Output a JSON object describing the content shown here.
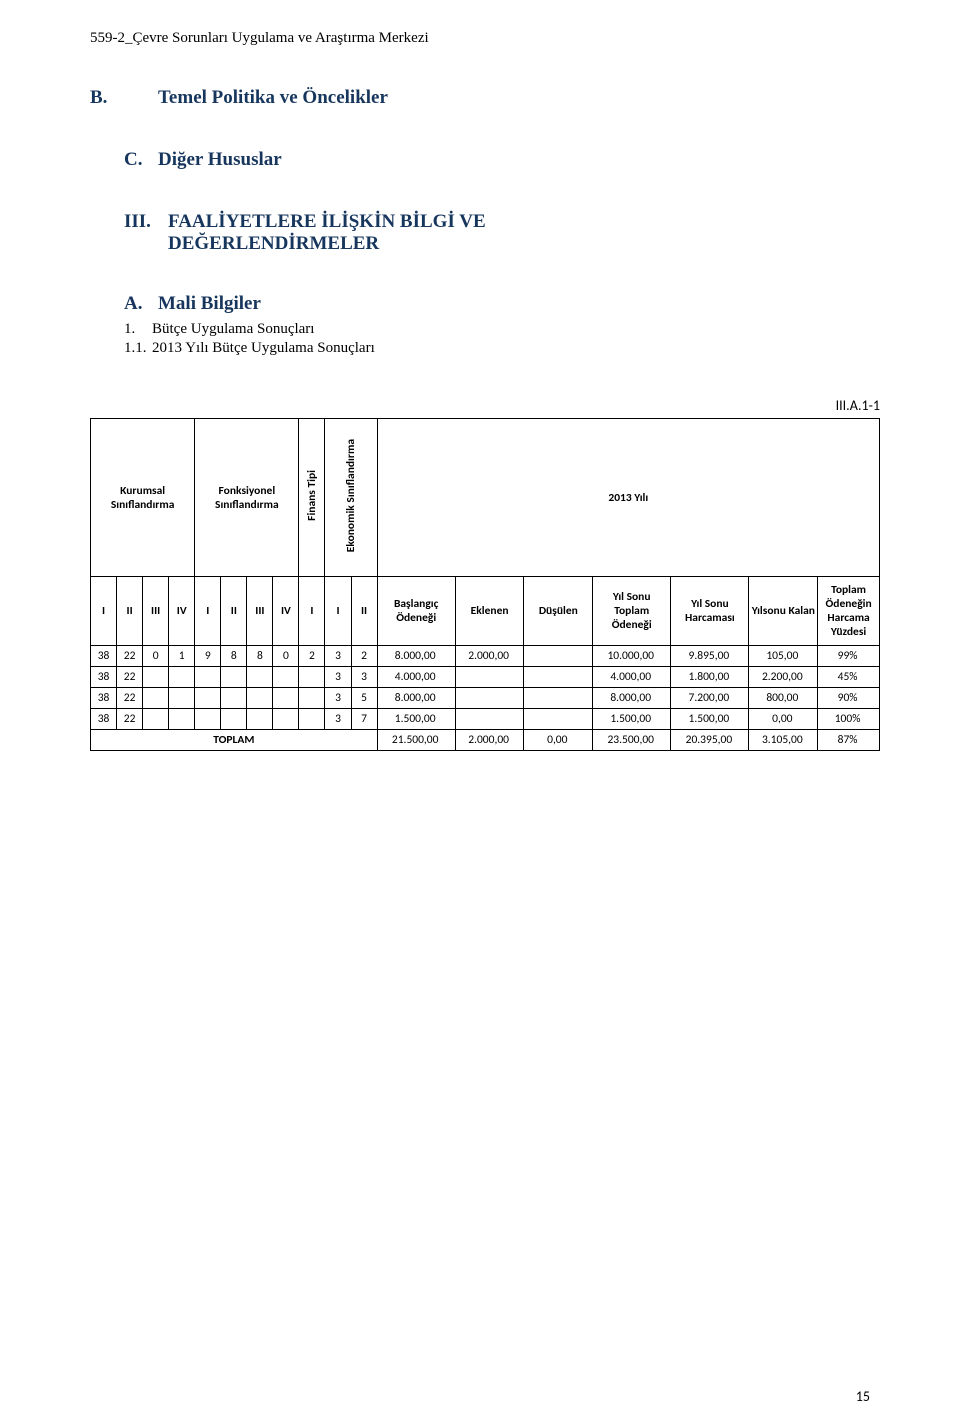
{
  "doc_header": "559-2_Çevre Sorunları Uygulama ve Araştırma Merkezi",
  "section_b": {
    "letter": "B.",
    "title": "Temel Politika ve Öncelikler"
  },
  "section_c": {
    "letter": "C.",
    "title": "Diğer Hususlar"
  },
  "section_iii": {
    "num": "III.",
    "line1": "FAALİYETLERE İLİŞKİN BİLGİ VE",
    "line2": "DEĞERLENDİRMELER"
  },
  "section_a": {
    "letter": "A.",
    "title": "Mali Bilgiler",
    "sub1_num": "1.",
    "sub1": "Bütçe Uygulama Sonuçları",
    "sub2_num": "1.1.",
    "sub2": "2013 Yılı Bütçe Uygulama Sonuçları"
  },
  "table_tag": "III.A.1-1",
  "headers_top": {
    "kurumsal": "Kurumsal Sınıflandırma",
    "fonksiyonel": "Fonksiyonel Sınıflandırma",
    "finans": "Finans Tipi",
    "ekonomik": "Ekonomik Sınıflandırma",
    "yil": "2013 Yılı"
  },
  "headers_code": [
    "I",
    "II",
    "III",
    "IV",
    "I",
    "II",
    "III",
    "IV",
    "I",
    "I",
    "II"
  ],
  "headers_data": {
    "baslangic": "Başlangıç Ödeneği",
    "eklenen": "Eklenen",
    "dusulen": "Düşülen",
    "yilsonu_toplam": "Yıl Sonu Toplam Ödeneği",
    "yilsonu_harcama": "Yıl Sonu Harcaması",
    "yilsonu_kalan": "Yılsonu Kalan",
    "yuzde": "Toplam Ödeneğin Harcama Yüzdesi"
  },
  "rows": [
    {
      "c": [
        "38",
        "22",
        "0",
        "1",
        "9",
        "8",
        "8",
        "0",
        "2",
        "3",
        "2"
      ],
      "baslangic": "8.000,00",
      "eklenen": "2.000,00",
      "dusulen": "",
      "toplam": "10.000,00",
      "harcama": "9.895,00",
      "kalan": "105,00",
      "yuzde": "99%"
    },
    {
      "c": [
        "38",
        "22",
        "",
        "",
        "",
        "",
        "",
        "",
        "",
        "3",
        "3"
      ],
      "baslangic": "4.000,00",
      "eklenen": "",
      "dusulen": "",
      "toplam": "4.000,00",
      "harcama": "1.800,00",
      "kalan": "2.200,00",
      "yuzde": "45%"
    },
    {
      "c": [
        "38",
        "22",
        "",
        "",
        "",
        "",
        "",
        "",
        "",
        "3",
        "5"
      ],
      "baslangic": "8.000,00",
      "eklenen": "",
      "dusulen": "",
      "toplam": "8.000,00",
      "harcama": "7.200,00",
      "kalan": "800,00",
      "yuzde": "90%"
    },
    {
      "c": [
        "38",
        "22",
        "",
        "",
        "",
        "",
        "",
        "",
        "",
        "3",
        "7"
      ],
      "baslangic": "1.500,00",
      "eklenen": "",
      "dusulen": "",
      "toplam": "1.500,00",
      "harcama": "1.500,00",
      "kalan": "0,00",
      "yuzde": "100%"
    }
  ],
  "totals": {
    "label": "TOPLAM",
    "baslangic": "21.500,00",
    "eklenen": "2.000,00",
    "dusulen": "0,00",
    "toplam": "23.500,00",
    "harcama": "20.395,00",
    "kalan": "3.105,00",
    "yuzde": "87%"
  },
  "page_number": "15",
  "colors": {
    "heading": "#17365d",
    "text": "#000000",
    "border": "#000000",
    "bg": "#ffffff"
  }
}
